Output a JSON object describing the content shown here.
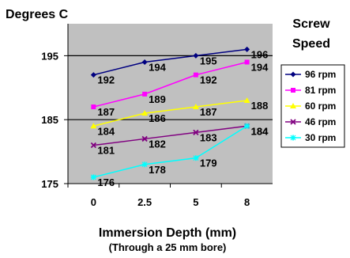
{
  "chart_data": {
    "type": "line",
    "ylabel": "Degrees C",
    "xlabel": "Immersion Depth (mm)",
    "xlabel_sub": "(Through a 25 mm bore)",
    "legend_title": [
      "Screw",
      "Speed"
    ],
    "categories": [
      "0",
      "2.5",
      "5",
      "8"
    ],
    "ylim": [
      175,
      200
    ],
    "yticks": [
      175,
      185,
      195
    ],
    "gridlines": [
      185,
      195
    ],
    "plot_background": "#c0c0c0",
    "legend_position": "right",
    "series": [
      {
        "name": "96 rpm",
        "values": [
          192,
          194,
          195,
          196
        ],
        "color": "#000080",
        "marker": "diamond"
      },
      {
        "name": "81 rpm",
        "values": [
          187,
          189,
          192,
          194
        ],
        "color": "#ff00ff",
        "marker": "square"
      },
      {
        "name": "60 rpm",
        "values": [
          184,
          186,
          187,
          188
        ],
        "color": "#ffff00",
        "marker": "triangle"
      },
      {
        "name": "46 rpm",
        "values": [
          181,
          182,
          183,
          184
        ],
        "color": "#800080",
        "marker": "x"
      },
      {
        "name": "30 rpm",
        "values": [
          176,
          178,
          179,
          184
        ],
        "color": "#00ffff",
        "marker": "star"
      }
    ]
  }
}
